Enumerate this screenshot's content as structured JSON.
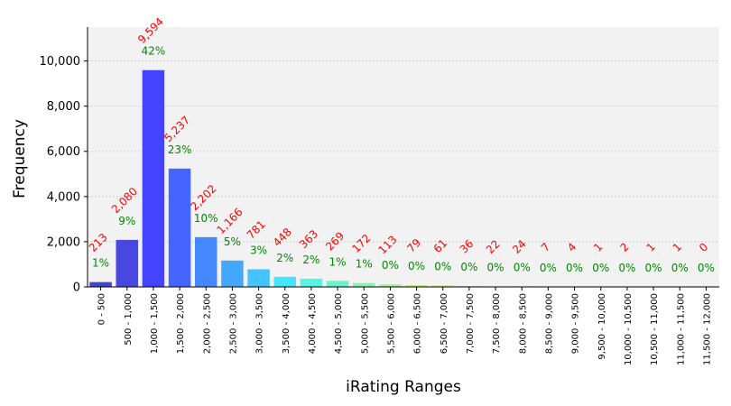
{
  "chart_data": {
    "type": "bar",
    "xlabel": "iRating Ranges",
    "ylabel": "Frequency",
    "ylim": [
      0,
      11500
    ],
    "y_ticks": [
      0,
      2000,
      4000,
      6000,
      8000,
      10000
    ],
    "y_tick_labels": [
      "0",
      "2,000",
      "4,000",
      "6,000",
      "8,000",
      "10,000"
    ],
    "grid": true,
    "categories": [
      "0 - 500",
      "500 - 1,000",
      "1,000 - 1,500",
      "1,500 - 2,000",
      "2,000 - 2,500",
      "2,500 - 3,000",
      "3,000 - 3,500",
      "3,500 - 4,000",
      "4,000 - 4,500",
      "4,500 - 5,000",
      "5,000 - 5,500",
      "5,500 - 6,000",
      "6,000 - 6,500",
      "6,500 - 7,000",
      "7,000 - 7,500",
      "7,500 - 8,000",
      "8,000 - 8,500",
      "8,500 - 9,000",
      "9,000 - 9,500",
      "9,500 - 10,000",
      "10,000 - 10,500",
      "10,500 - 11,000",
      "11,000 - 11,500",
      "11,500 - 12,000"
    ],
    "values": [
      213,
      2080,
      9594,
      5237,
      2202,
      1166,
      781,
      448,
      363,
      269,
      172,
      113,
      79,
      61,
      36,
      22,
      24,
      7,
      4,
      1,
      2,
      1,
      1,
      0
    ],
    "value_labels": [
      "213",
      "2,080",
      "9,594",
      "5,237",
      "2,202",
      "1,166",
      "781",
      "448",
      "363",
      "269",
      "172",
      "113",
      "79",
      "61",
      "36",
      "22",
      "24",
      "7",
      "4",
      "1",
      "2",
      "1",
      "1",
      "0"
    ],
    "percent_labels": [
      "1%",
      "9%",
      "42%",
      "23%",
      "10%",
      "5%",
      "3%",
      "2%",
      "2%",
      "1%",
      "1%",
      "0%",
      "0%",
      "0%",
      "0%",
      "0%",
      "0%",
      "0%",
      "0%",
      "0%",
      "0%",
      "0%",
      "0%",
      "0%"
    ],
    "bar_colors": [
      "#4444cc",
      "#4848e0",
      "#4444ff",
      "#4466ff",
      "#4488ff",
      "#44a8ff",
      "#44c4ff",
      "#44e4ff",
      "#55f4e4",
      "#66f4c8",
      "#88f4a8",
      "#a4f488",
      "#c0f070",
      "#d4e860",
      "#e0dc58",
      "#e8cc50",
      "#eeb848",
      "#f0a040",
      "#f08838",
      "#ee6830",
      "#ea4c2a",
      "#e43424",
      "#dc2420",
      "#d01818"
    ],
    "value_label_color": "#ff0000",
    "percent_label_color": "#008800",
    "plot_background": "#f2f2f2"
  }
}
